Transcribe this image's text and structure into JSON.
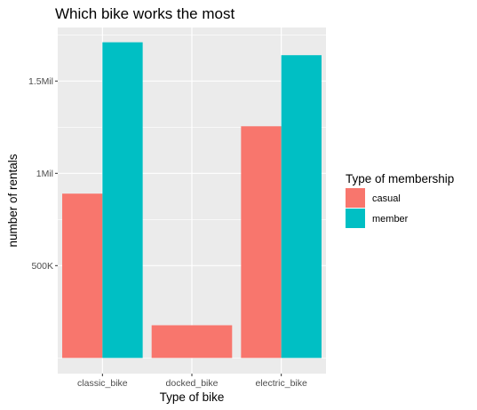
{
  "chart_data": {
    "type": "bar",
    "title": "Which bike works the most",
    "xlabel": "Type of bike",
    "ylabel": "number of rentals",
    "categories": [
      "classic_bike",
      "docked_bike",
      "electric_bike"
    ],
    "series": [
      {
        "name": "casual",
        "values": [
          890000,
          177000,
          1255000
        ],
        "color": "#F8766D"
      },
      {
        "name": "member",
        "values": [
          1710000,
          null,
          1640000
        ],
        "color": "#00BFC4"
      }
    ],
    "ylim": [
      -85000,
      1790000
    ],
    "yticks": [
      {
        "value": 500000,
        "label": "500K"
      },
      {
        "value": 1000000,
        "label": "1Mil"
      },
      {
        "value": 1500000,
        "label": "1.5Mil"
      }
    ],
    "legend": {
      "title": "Type of membership",
      "position": "right"
    },
    "colors": {
      "panel": "#EBEBEB",
      "grid_major": "#FFFFFF",
      "casual": "#F8766D",
      "member": "#00BFC4"
    },
    "grid": true
  }
}
